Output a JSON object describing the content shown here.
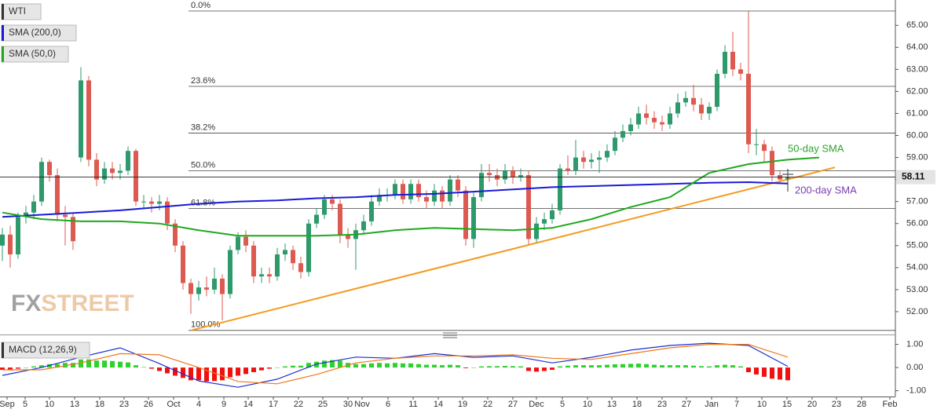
{
  "chart_data": [
    {
      "type": "candlestick",
      "name": "WTI",
      "up_color": "#2e9a6c",
      "down_color": "#dd5a50",
      "open": [
        55.0,
        55.5,
        54.6,
        56.3,
        56.5,
        57.0,
        58.8,
        58.2,
        56.4,
        56.3,
        59.0,
        62.5,
        58.9,
        58.0,
        58.5,
        58.3,
        58.4,
        59.3,
        57.0,
        57.0,
        56.9,
        57.0,
        56.0,
        55.0,
        53.3,
        52.8,
        53.1,
        53.0,
        53.5,
        52.8,
        54.8,
        55.4,
        55.0,
        53.6,
        53.7,
        53.6,
        54.6,
        54.8,
        54.2,
        53.8,
        56.0,
        56.4,
        57.1,
        56.9,
        55.5,
        55.3,
        55.7,
        56.1,
        57.0,
        57.3,
        57.3,
        57.8,
        57.1,
        57.8,
        57.2,
        57.0,
        57.5,
        57.0,
        58.0,
        57.5,
        55.3,
        57.2,
        58.3,
        58.2,
        58.0,
        58.4,
        58.1,
        58.2,
        55.3,
        56.0,
        56.2,
        56.6,
        58.5,
        58.4,
        59.0,
        58.8,
        58.9,
        59.0,
        59.3,
        59.9,
        60.2,
        60.5,
        61.0,
        60.8,
        60.6,
        60.5,
        61.0,
        61.5,
        61.7,
        61.4,
        61.0,
        61.3,
        62.8,
        63.8,
        63.0,
        62.8,
        59.6,
        59.6,
        59.3,
        58.2,
        58.0
      ],
      "high": [
        55.8,
        55.9,
        56.5,
        56.8,
        57.3,
        59.0,
        58.9,
        58.5,
        56.8,
        56.5,
        63.1,
        62.7,
        59.2,
        58.8,
        58.8,
        58.7,
        59.5,
        59.4,
        57.3,
        57.2,
        57.3,
        57.2,
        56.2,
        55.2,
        53.5,
        53.4,
        53.6,
        54.0,
        53.7,
        55.0,
        55.6,
        55.7,
        55.2,
        54.0,
        54.0,
        54.9,
        55.1,
        55.0,
        54.5,
        56.2,
        56.7,
        57.3,
        57.3,
        57.1,
        55.8,
        56.0,
        56.4,
        57.3,
        57.6,
        57.6,
        58.0,
        58.0,
        58.0,
        58.0,
        57.5,
        57.8,
        57.7,
        58.2,
        58.2,
        57.7,
        57.4,
        58.7,
        58.7,
        58.5,
        58.7,
        58.6,
        58.5,
        58.4,
        56.3,
        56.5,
        56.9,
        58.7,
        59.1,
        59.8,
        59.3,
        59.2,
        59.3,
        59.6,
        60.2,
        60.5,
        60.8,
        61.3,
        61.4,
        61.1,
        60.9,
        61.3,
        61.9,
        62.0,
        62.3,
        61.7,
        61.5,
        63.0,
        64.1,
        64.7,
        63.3,
        65.65,
        60.3,
        59.8,
        59.5,
        58.4,
        58.4
      ],
      "low": [
        54.3,
        54.0,
        54.4,
        56.0,
        56.2,
        56.8,
        57.9,
        56.1,
        55.0,
        54.8,
        58.8,
        58.6,
        57.7,
        57.8,
        58.0,
        58.0,
        58.2,
        56.8,
        56.7,
        56.5,
        56.6,
        55.7,
        54.7,
        53.0,
        51.9,
        52.5,
        52.7,
        52.8,
        51.6,
        52.6,
        54.6,
        54.7,
        53.3,
        53.3,
        53.3,
        53.4,
        54.3,
        53.9,
        53.5,
        53.6,
        55.8,
        56.2,
        56.6,
        55.1,
        54.9,
        53.9,
        55.5,
        55.9,
        56.8,
        57.0,
        57.1,
        56.9,
        56.9,
        57.0,
        56.7,
        56.8,
        56.7,
        56.8,
        57.2,
        55.0,
        54.9,
        57.0,
        57.9,
        57.7,
        57.8,
        57.8,
        57.9,
        55.0,
        55.1,
        55.7,
        56.0,
        56.4,
        58.2,
        58.2,
        58.5,
        58.5,
        58.3,
        58.8,
        59.1,
        59.7,
        60.0,
        60.3,
        60.5,
        60.3,
        60.2,
        60.3,
        60.8,
        61.3,
        61.1,
        60.7,
        60.7,
        61.1,
        62.6,
        62.7,
        62.5,
        59.2,
        59.1,
        58.8,
        57.9,
        57.8,
        57.5
      ],
      "close": [
        55.5,
        54.6,
        56.3,
        56.5,
        57.0,
        58.8,
        58.2,
        56.4,
        56.3,
        55.2,
        62.5,
        58.9,
        58.0,
        58.5,
        58.3,
        58.4,
        59.3,
        57.0,
        57.0,
        56.9,
        57.0,
        56.0,
        55.0,
        53.3,
        52.8,
        53.1,
        53.0,
        53.5,
        52.8,
        54.8,
        55.4,
        55.0,
        53.6,
        53.7,
        53.6,
        54.6,
        54.8,
        54.2,
        53.8,
        56.0,
        56.4,
        57.1,
        56.9,
        55.5,
        55.3,
        55.7,
        56.1,
        57.0,
        57.3,
        57.3,
        57.8,
        57.1,
        57.8,
        57.2,
        57.0,
        57.5,
        57.0,
        58.0,
        57.5,
        55.3,
        57.2,
        58.3,
        58.2,
        58.0,
        58.4,
        58.1,
        58.2,
        55.3,
        56.0,
        56.2,
        56.6,
        58.5,
        58.4,
        59.0,
        58.8,
        58.9,
        59.0,
        59.3,
        59.9,
        60.2,
        60.5,
        61.0,
        60.8,
        60.6,
        60.5,
        61.0,
        61.5,
        61.7,
        61.4,
        61.0,
        61.3,
        62.8,
        63.8,
        63.0,
        62.8,
        59.6,
        59.6,
        59.3,
        58.2,
        58.0,
        58.11
      ],
      "series": [
        {
          "name": "SMA (200,0)",
          "color": "#1a1ad6",
          "x": [
            0,
            5,
            10,
            15,
            20,
            25,
            30,
            35,
            40,
            45,
            50,
            55,
            60,
            65,
            70,
            75,
            80,
            85,
            90,
            95,
            100
          ],
          "values": [
            56.3,
            56.4,
            56.5,
            56.6,
            56.75,
            56.9,
            57.0,
            57.05,
            57.15,
            57.2,
            57.3,
            57.35,
            57.45,
            57.55,
            57.65,
            57.7,
            57.75,
            57.8,
            57.85,
            57.88,
            57.82
          ]
        },
        {
          "name": "SMA (50,0)",
          "color": "#1fa81f",
          "x": [
            0,
            5,
            10,
            15,
            20,
            25,
            30,
            35,
            40,
            45,
            50,
            55,
            60,
            65,
            70,
            75,
            80,
            85,
            90,
            95,
            100,
            104
          ],
          "values": [
            56.5,
            56.2,
            56.1,
            56.1,
            56.0,
            55.7,
            55.45,
            55.45,
            55.45,
            55.5,
            55.7,
            55.8,
            55.75,
            55.7,
            55.8,
            56.2,
            56.75,
            57.2,
            58.3,
            58.7,
            58.9,
            59.0
          ]
        }
      ],
      "trendline": {
        "color": "#f39a1e",
        "x": [
          24,
          106
        ],
        "values": [
          51.15,
          58.55
        ]
      },
      "fibonacci": [
        {
          "label": "0.0%",
          "value": 65.65
        },
        {
          "label": "23.6%",
          "value": 62.23
        },
        {
          "label": "38.2%",
          "value": 60.11
        },
        {
          "label": "50.0%",
          "value": 58.4
        },
        {
          "label": "61.8%",
          "value": 56.69
        },
        {
          "label": "100.0%",
          "value": 51.15
        }
      ],
      "annotations": [
        {
          "text": "50-day SMA",
          "color": "#2aa52a"
        },
        {
          "text": "200-day SMA",
          "color": "#7a3fb0"
        }
      ],
      "watermark": [
        "FX",
        "STREET"
      ],
      "grid": false,
      "xlim": [
        -0.3,
        113.7
      ],
      "ylim": [
        51.0,
        66.15
      ],
      "xticks": [
        {
          "value": 0.6,
          "label": "Sep"
        },
        {
          "value": 2.9,
          "label": "5"
        },
        {
          "value": 6.0,
          "label": "10"
        },
        {
          "value": 9.2,
          "label": "13"
        },
        {
          "value": 12.4,
          "label": "18"
        },
        {
          "value": 15.5,
          "label": "23"
        },
        {
          "value": 18.6,
          "label": "26"
        },
        {
          "value": 21.8,
          "label": "Oct"
        },
        {
          "value": 25.0,
          "label": "4"
        },
        {
          "value": 28.2,
          "label": "9"
        },
        {
          "value": 31.3,
          "label": "14"
        },
        {
          "value": 34.5,
          "label": "17"
        },
        {
          "value": 37.7,
          "label": "22"
        },
        {
          "value": 40.8,
          "label": "25"
        },
        {
          "value": 44.0,
          "label": "30"
        },
        {
          "value": 45.8,
          "label": "Nov"
        },
        {
          "value": 49.1,
          "label": "6"
        },
        {
          "value": 52.3,
          "label": "11"
        },
        {
          "value": 55.5,
          "label": "14"
        },
        {
          "value": 58.6,
          "label": "19"
        },
        {
          "value": 61.8,
          "label": "22"
        },
        {
          "value": 65.0,
          "label": "27"
        },
        {
          "value": 68.0,
          "label": "Dec"
        },
        {
          "value": 71.3,
          "label": "5"
        },
        {
          "value": 74.5,
          "label": "10"
        },
        {
          "value": 77.6,
          "label": "13"
        },
        {
          "value": 80.8,
          "label": "18"
        },
        {
          "value": 84.0,
          "label": "23"
        },
        {
          "value": 87.1,
          "label": "27"
        },
        {
          "value": 90.3,
          "label": "Jan"
        },
        {
          "value": 93.5,
          "label": "7"
        },
        {
          "value": 96.7,
          "label": "10"
        },
        {
          "value": 99.9,
          "label": "15"
        },
        {
          "value": 103.1,
          "label": "20"
        },
        {
          "value": 106.2,
          "label": "23"
        },
        {
          "value": 109.4,
          "label": "28"
        },
        {
          "value": 113.0,
          "label": "Feb"
        }
      ],
      "yticks": [
        {
          "value": 52,
          "label": "52.00"
        },
        {
          "value": 53,
          "label": "53.00"
        },
        {
          "value": 54,
          "label": "54.00"
        },
        {
          "value": 55,
          "label": "55.00"
        },
        {
          "value": 56,
          "label": "56.00"
        },
        {
          "value": 57,
          "label": "57.00"
        },
        {
          "value": 58,
          "label": "58.00"
        },
        {
          "value": 59,
          "label": "59.00"
        },
        {
          "value": 60,
          "label": "60.00"
        },
        {
          "value": 61,
          "label": "61.00"
        },
        {
          "value": 62,
          "label": "62.00"
        },
        {
          "value": 63,
          "label": "63.00"
        },
        {
          "value": 64,
          "label": "64.00"
        },
        {
          "value": 65,
          "label": "65.00"
        }
      ]
    },
    {
      "type": "macd",
      "title": "MACD (12,26,9)",
      "up_color": "#2ed12e",
      "down_color": "#f01010",
      "histogram": [
        -0.1,
        -0.12,
        -0.05,
        0.0,
        0.05,
        0.1,
        0.15,
        0.15,
        0.2,
        0.2,
        0.35,
        0.35,
        0.3,
        0.3,
        0.28,
        0.25,
        0.22,
        0.1,
        0.02,
        -0.05,
        -0.15,
        -0.25,
        -0.35,
        -0.45,
        -0.55,
        -0.55,
        -0.6,
        -0.58,
        -0.55,
        -0.42,
        -0.35,
        -0.28,
        -0.2,
        -0.12,
        -0.05,
        0.0,
        0.05,
        0.08,
        0.08,
        0.2,
        0.25,
        0.3,
        0.32,
        0.3,
        0.2,
        0.15,
        0.15,
        0.18,
        0.2,
        0.18,
        0.2,
        0.18,
        0.18,
        0.15,
        0.12,
        0.12,
        0.1,
        0.12,
        0.1,
        -0.03,
        0.0,
        0.05,
        0.06,
        0.06,
        0.07,
        0.06,
        0.05,
        -0.15,
        -0.18,
        -0.15,
        -0.1,
        0.05,
        0.08,
        0.1,
        0.1,
        0.1,
        0.1,
        0.12,
        0.14,
        0.15,
        0.16,
        0.17,
        0.15,
        0.12,
        0.1,
        0.1,
        0.1,
        0.1,
        0.08,
        0.06,
        0.05,
        0.1,
        0.12,
        0.1,
        0.05,
        -0.2,
        -0.3,
        -0.4,
        -0.48,
        -0.52,
        -0.55
      ],
      "series": [
        {
          "color": "#1e2fd0",
          "x": [
            0,
            5,
            10,
            15,
            20,
            25,
            30,
            35,
            40,
            45,
            50,
            55,
            60,
            65,
            70,
            75,
            80,
            85,
            90,
            95,
            100
          ],
          "values": [
            -0.34,
            0.0,
            0.45,
            0.85,
            0.17,
            -0.58,
            -0.85,
            -0.5,
            0.15,
            0.45,
            0.4,
            0.6,
            0.44,
            0.5,
            0.2,
            0.44,
            0.75,
            0.95,
            1.05,
            0.95,
            0.05
          ]
        },
        {
          "color": "#f07818",
          "x": [
            0,
            5,
            10,
            15,
            20,
            25,
            30,
            35,
            40,
            45,
            50,
            55,
            60,
            65,
            70,
            75,
            80,
            85,
            90,
            95,
            100
          ],
          "values": [
            -0.1,
            -0.1,
            0.2,
            0.6,
            0.55,
            0.0,
            -0.6,
            -0.7,
            -0.3,
            0.2,
            0.4,
            0.5,
            0.5,
            0.55,
            0.4,
            0.35,
            0.6,
            0.85,
            1.0,
            1.0,
            0.45
          ]
        }
      ],
      "ylim": [
        -1.25,
        1.29
      ],
      "yticks": [
        {
          "value": 1,
          "label": "1.00"
        },
        {
          "value": 0,
          "label": "0.00"
        },
        {
          "value": -1,
          "label": "-1.00"
        }
      ]
    }
  ]
}
